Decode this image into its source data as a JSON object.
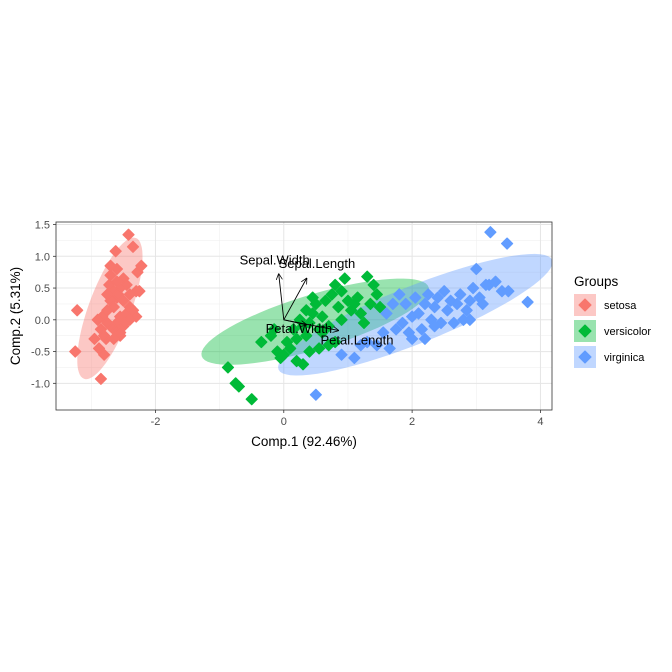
{
  "chart_data": {
    "type": "scatter",
    "xlabel": "Comp.1 (92.46%)",
    "ylabel": "Comp.2 (5.31%)",
    "xlim": [
      -3.55,
      4.18
    ],
    "ylim": [
      -1.42,
      1.54
    ],
    "x_ticks": [
      -2,
      0,
      2,
      4
    ],
    "y_ticks": [
      -1.0,
      -0.5,
      0.0,
      0.5,
      1.0,
      1.5
    ],
    "x_tick_labels": [
      "-2",
      "0",
      "2",
      "4"
    ],
    "y_tick_labels": [
      "-1.0",
      "-0.5",
      "0.0",
      "0.5",
      "1.0",
      "1.5"
    ],
    "grid": true,
    "legend": {
      "title": "Groups",
      "placement": "right"
    },
    "series": [
      {
        "name": "setosa",
        "color": "#F8766D",
        "ellipse": {
          "center": [
            -2.71,
            0.18
          ],
          "semi_major": 1.18,
          "semi_minor": 0.33,
          "angle_deg": 70
        },
        "points": [
          [
            -3.22,
            0.15
          ],
          [
            -3.25,
            -0.5
          ],
          [
            -2.95,
            -0.3
          ],
          [
            -2.88,
            -0.45
          ],
          [
            -2.8,
            -0.55
          ],
          [
            -2.85,
            -0.93
          ],
          [
            -2.77,
            -0.3
          ],
          [
            -2.83,
            0.05
          ],
          [
            -2.6,
            0.8
          ],
          [
            -2.7,
            0.7
          ],
          [
            -2.5,
            0.65
          ],
          [
            -2.45,
            0.55
          ],
          [
            -2.55,
            0.5
          ],
          [
            -2.65,
            0.45
          ],
          [
            -2.6,
            0.35
          ],
          [
            -2.4,
            0.4
          ],
          [
            -2.3,
            0.45
          ],
          [
            -2.5,
            0.3
          ],
          [
            -2.7,
            0.3
          ],
          [
            -2.65,
            0.2
          ],
          [
            -2.75,
            0.15
          ],
          [
            -2.55,
            0.05
          ],
          [
            -2.45,
            0.1
          ],
          [
            -2.35,
            0.15
          ],
          [
            -2.3,
            0.05
          ],
          [
            -2.6,
            -0.05
          ],
          [
            -2.65,
            -0.15
          ],
          [
            -2.5,
            -0.1
          ],
          [
            -2.4,
            0.0
          ],
          [
            -2.55,
            -0.25
          ],
          [
            -2.7,
            -0.1
          ],
          [
            -2.85,
            -0.15
          ],
          [
            -2.9,
            0.0
          ],
          [
            -2.75,
            -0.05
          ],
          [
            -2.6,
            0.6
          ],
          [
            -2.7,
            0.85
          ],
          [
            -2.28,
            0.75
          ],
          [
            -2.22,
            0.85
          ],
          [
            -2.25,
            0.45
          ],
          [
            -2.4,
            0.2
          ],
          [
            -2.8,
            -0.25
          ],
          [
            -2.55,
            -0.2
          ],
          [
            -2.48,
            -0.05
          ],
          [
            -2.65,
            -0.3
          ],
          [
            -2.35,
            1.15
          ],
          [
            -2.42,
            1.34
          ],
          [
            -2.62,
            1.08
          ],
          [
            -2.75,
            0.4
          ],
          [
            -2.72,
            0.55
          ],
          [
            -2.58,
            0.4
          ]
        ]
      },
      {
        "name": "versicolor",
        "color": "#00BA38",
        "ellipse": {
          "center": [
            0.49,
            -0.03
          ],
          "semi_major": 1.85,
          "semi_minor": 0.43,
          "angle_deg": 17
        },
        "points": [
          [
            -0.87,
            -0.75
          ],
          [
            -0.75,
            -1.0
          ],
          [
            -0.7,
            -1.05
          ],
          [
            -0.5,
            -1.25
          ],
          [
            -0.35,
            -0.35
          ],
          [
            -0.2,
            -0.25
          ],
          [
            -0.1,
            -0.5
          ],
          [
            -0.05,
            -0.6
          ],
          [
            0.0,
            -0.55
          ],
          [
            0.05,
            -0.35
          ],
          [
            0.1,
            -0.45
          ],
          [
            0.15,
            -0.15
          ],
          [
            0.2,
            -0.3
          ],
          [
            0.25,
            0.0
          ],
          [
            0.3,
            -0.1
          ],
          [
            0.35,
            -0.25
          ],
          [
            0.35,
            0.15
          ],
          [
            0.4,
            -0.05
          ],
          [
            0.45,
            0.1
          ],
          [
            0.5,
            0.25
          ],
          [
            0.55,
            -0.15
          ],
          [
            0.6,
            0.05
          ],
          [
            0.65,
            0.3
          ],
          [
            0.7,
            -0.1
          ],
          [
            0.75,
            0.4
          ],
          [
            0.8,
            0.55
          ],
          [
            0.85,
            0.2
          ],
          [
            0.9,
            0.45
          ],
          [
            0.95,
            0.65
          ],
          [
            1.0,
            0.3
          ],
          [
            1.05,
            0.15
          ],
          [
            1.1,
            0.25
          ],
          [
            1.15,
            0.35
          ],
          [
            1.2,
            0.1
          ],
          [
            1.25,
            -0.05
          ],
          [
            1.3,
            0.68
          ],
          [
            1.35,
            0.25
          ],
          [
            1.4,
            0.55
          ],
          [
            1.45,
            0.4
          ],
          [
            1.5,
            0.2
          ],
          [
            0.4,
            -0.5
          ],
          [
            0.55,
            -0.45
          ],
          [
            0.7,
            -0.4
          ],
          [
            0.2,
            -0.65
          ],
          [
            0.3,
            -0.7
          ],
          [
            0.6,
            -0.2
          ],
          [
            0.9,
            0.0
          ],
          [
            0.8,
            -0.35
          ],
          [
            -0.15,
            -0.15
          ],
          [
            0.45,
            0.35
          ]
        ]
      },
      {
        "name": "virginica",
        "color": "#619CFF",
        "ellipse": {
          "center": [
            2.05,
            0.08
          ],
          "semi_major": 2.3,
          "semi_minor": 0.45,
          "angle_deg": 22
        },
        "points": [
          [
            0.5,
            -1.18
          ],
          [
            0.9,
            -0.55
          ],
          [
            1.1,
            -0.6
          ],
          [
            1.2,
            -0.4
          ],
          [
            1.3,
            -0.35
          ],
          [
            1.45,
            -0.4
          ],
          [
            1.55,
            -0.2
          ],
          [
            1.65,
            -0.45
          ],
          [
            1.75,
            -0.15
          ],
          [
            1.85,
            -0.05
          ],
          [
            1.9,
            0.25
          ],
          [
            1.95,
            -0.2
          ],
          [
            2.0,
            0.05
          ],
          [
            2.05,
            0.35
          ],
          [
            2.1,
            0.1
          ],
          [
            2.15,
            -0.15
          ],
          [
            2.2,
            0.25
          ],
          [
            2.25,
            0.4
          ],
          [
            2.3,
            0.0
          ],
          [
            2.35,
            0.2
          ],
          [
            2.4,
            0.35
          ],
          [
            2.45,
            -0.05
          ],
          [
            2.5,
            0.45
          ],
          [
            2.55,
            0.15
          ],
          [
            2.6,
            0.3
          ],
          [
            2.65,
            -0.05
          ],
          [
            2.7,
            0.25
          ],
          [
            2.75,
            0.4
          ],
          [
            2.8,
            0.0
          ],
          [
            2.85,
            0.15
          ],
          [
            2.9,
            0.3
          ],
          [
            2.95,
            0.5
          ],
          [
            3.0,
            0.8
          ],
          [
            3.05,
            0.35
          ],
          [
            3.1,
            0.25
          ],
          [
            3.2,
            0.55
          ],
          [
            3.22,
            1.38
          ],
          [
            3.3,
            0.6
          ],
          [
            3.4,
            0.45
          ],
          [
            3.48,
            1.2
          ],
          [
            3.5,
            0.45
          ],
          [
            3.8,
            0.28
          ],
          [
            1.8,
            0.4
          ],
          [
            2.0,
            -0.3
          ],
          [
            1.6,
            0.1
          ],
          [
            2.2,
            -0.3
          ],
          [
            2.9,
            0.0
          ],
          [
            3.15,
            0.55
          ],
          [
            1.7,
            0.25
          ],
          [
            2.35,
            -0.1
          ]
        ]
      }
    ],
    "loadings": [
      {
        "label": "Sepal.Length",
        "x": 0.36,
        "y": 0.66
      },
      {
        "label": "Sepal.Width",
        "x": -0.08,
        "y": 0.73
      },
      {
        "label": "Petal.Length",
        "x": 0.86,
        "y": -0.17
      },
      {
        "label": "Petal.Width",
        "x": 0.36,
        "y": -0.08
      }
    ]
  }
}
